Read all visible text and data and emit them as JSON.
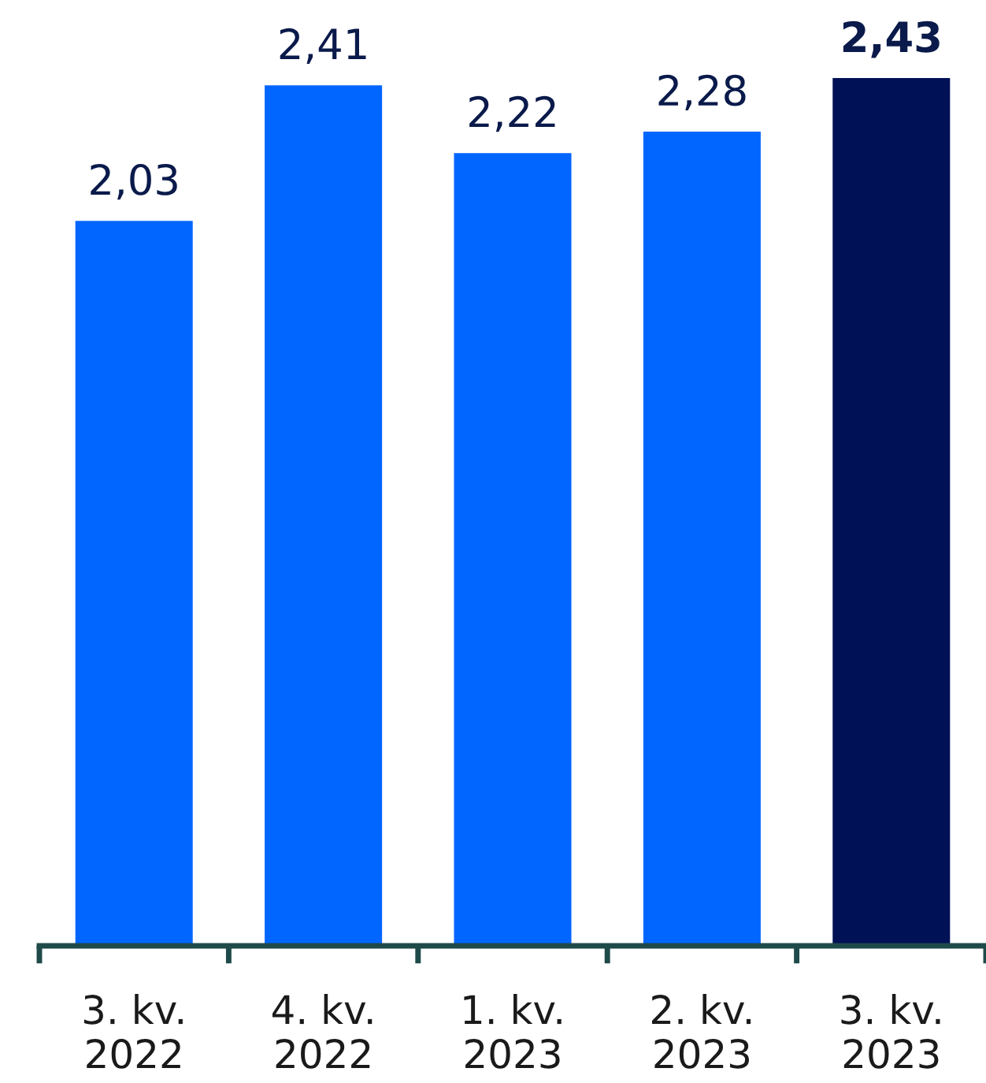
{
  "chart_data": {
    "type": "bar",
    "categories": [
      "3. kv.\n2022",
      "4. kv.\n2022",
      "1. kv.\n2023",
      "2. kv.\n2023",
      "3. kv.\n2023"
    ],
    "values": [
      2.03,
      2.41,
      2.22,
      2.28,
      2.43
    ],
    "value_labels": [
      "2,03",
      "2,41",
      "2,22",
      "2,28",
      "2,43"
    ],
    "colors": [
      "#0066ff",
      "#0066ff",
      "#0066ff",
      "#0066ff",
      "#001155"
    ],
    "grid": false,
    "legend": false
  }
}
